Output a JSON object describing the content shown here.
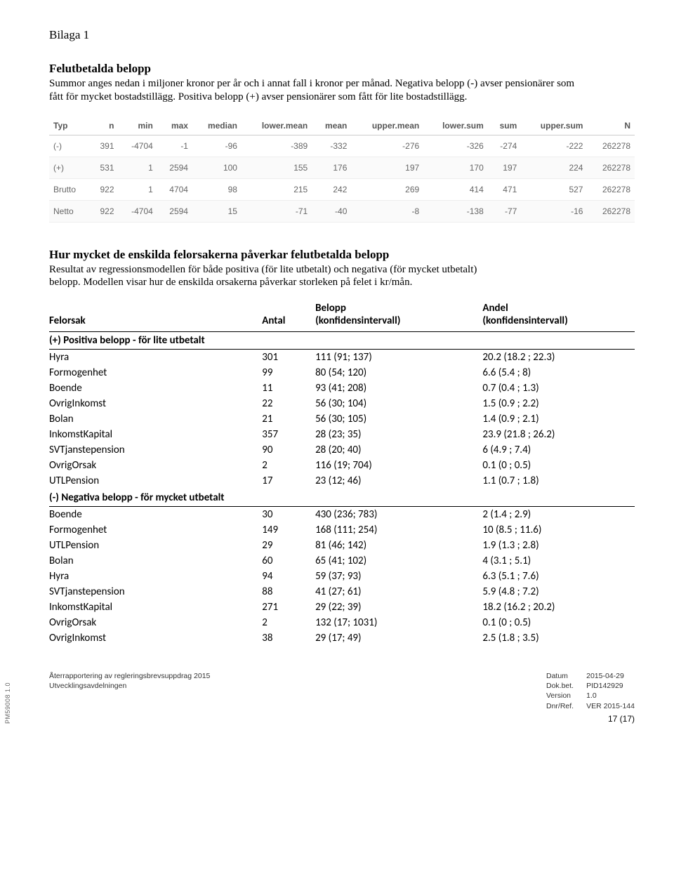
{
  "appendix_label": "Bilaga 1",
  "section1": {
    "title": "Felutbetalda belopp",
    "body": "Summor anges nedan i miljoner kronor per år och i annat fall i kronor per månad. Negativa belopp (-) avser pensionärer som fått för mycket bostadstillägg. Positiva belopp (+) avser pensionärer som fått för lite bostadstillägg."
  },
  "stats_table": {
    "columns": [
      "Typ",
      "n",
      "min",
      "max",
      "median",
      "lower.mean",
      "mean",
      "upper.mean",
      "lower.sum",
      "sum",
      "upper.sum",
      "N"
    ],
    "rows": [
      [
        "(-)",
        "391",
        "-4704",
        "-1",
        "-96",
        "-389",
        "-332",
        "-276",
        "-326",
        "-274",
        "-222",
        "262278"
      ],
      [
        "(+)",
        "531",
        "1",
        "2594",
        "100",
        "155",
        "176",
        "197",
        "170",
        "197",
        "224",
        "262278"
      ],
      [
        "Brutto",
        "922",
        "1",
        "4704",
        "98",
        "215",
        "242",
        "269",
        "414",
        "471",
        "527",
        "262278"
      ],
      [
        "Netto",
        "922",
        "-4704",
        "2594",
        "15",
        "-71",
        "-40",
        "-8",
        "-138",
        "-77",
        "-16",
        "262278"
      ]
    ]
  },
  "section2": {
    "title": "Hur mycket de enskilda felorsakerna påverkar felutbetalda belopp",
    "body": "Resultat av regressionsmodellen för både positiva (för lite utbetalt) och negativa (för mycket utbetalt) belopp. Modellen visar hur de enskilda orsakerna påverkar storleken på felet i kr/mån."
  },
  "cause_table": {
    "headers": {
      "felorsak": "Felorsak",
      "antal": "Antal",
      "belopp_l1": "Belopp",
      "belopp_l2": "(konfidensintervall)",
      "andel_l1": "Andel",
      "andel_l2": "(konfidensintervall)"
    },
    "sub1": "(+) Positiva belopp - för lite utbetalt",
    "rows1": [
      [
        "Hyra",
        "301",
        "111 (91; 137)",
        "20.2 (18.2 ; 22.3)"
      ],
      [
        "Formogenhet",
        "99",
        "80 (54; 120)",
        "6.6 (5.4 ; 8)"
      ],
      [
        "Boende",
        "11",
        "93 (41; 208)",
        "0.7 (0.4 ; 1.3)"
      ],
      [
        "OvrigInkomst",
        "22",
        "56 (30; 104)",
        "1.5 (0.9 ; 2.2)"
      ],
      [
        "Bolan",
        "21",
        "56 (30; 105)",
        "1.4 (0.9 ; 2.1)"
      ],
      [
        "InkomstKapital",
        "357",
        "28 (23; 35)",
        "23.9 (21.8 ; 26.2)"
      ],
      [
        "SVTjanstepension",
        "90",
        "28 (20; 40)",
        "6 (4.9 ; 7.4)"
      ],
      [
        "OvrigOrsak",
        "2",
        "116 (19; 704)",
        "0.1 (0 ; 0.5)"
      ],
      [
        "UTLPension",
        "17",
        "23 (12; 46)",
        "1.1 (0.7 ; 1.8)"
      ]
    ],
    "sub2": "(-) Negativa belopp - för mycket utbetalt",
    "rows2": [
      [
        "Boende",
        "30",
        "430 (236; 783)",
        "2 (1.4 ; 2.9)"
      ],
      [
        "Formogenhet",
        "149",
        "168 (111; 254)",
        "10 (8.5 ; 11.6)"
      ],
      [
        "UTLPension",
        "29",
        "81 (46; 142)",
        "1.9 (1.3 ; 2.8)"
      ],
      [
        "Bolan",
        "60",
        "65 (41; 102)",
        "4 (3.1 ; 5.1)"
      ],
      [
        "Hyra",
        "94",
        "59 (37; 93)",
        "6.3 (5.1 ; 7.6)"
      ],
      [
        "SVTjanstepension",
        "88",
        "41 (27; 61)",
        "5.9 (4.8 ; 7.2)"
      ],
      [
        "InkomstKapital",
        "271",
        "29 (22; 39)",
        "18.2 (16.2 ; 20.2)"
      ],
      [
        "OvrigOrsak",
        "2",
        "132 (17; 1031)",
        "0.1 (0 ; 0.5)"
      ],
      [
        "OvrigInkomst",
        "38",
        "29 (17; 49)",
        "2.5 (1.8 ; 3.5)"
      ]
    ]
  },
  "footer": {
    "left_l1": "Återrapportering av regleringsbrevsuppdrag 2015",
    "left_l2": "Utvecklingsavdelningen",
    "keys": [
      "Datum",
      "Dok.bet.",
      "Version",
      "Dnr/Ref."
    ],
    "vals": [
      "2015-04-29",
      "PID142929",
      "1.0",
      "VER 2015-144"
    ],
    "page": "17 (17)"
  },
  "sidelabel": "PM59008 1.0"
}
